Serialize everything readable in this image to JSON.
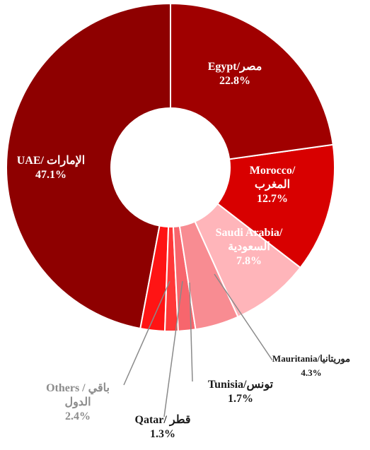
{
  "chart_data": {
    "type": "donut",
    "categories": [
      "Egypt/مصر",
      "Morocco/المغرب",
      "Saudi Arabia/ السعودية",
      "Mauritania/موريتانيا",
      "Tunisia/تونس",
      "Qatar/ قطر",
      "Others / باقي الدول",
      "UAE/ الإمارات"
    ],
    "values": [
      22.8,
      12.7,
      7.8,
      4.3,
      1.7,
      1.3,
      2.4,
      47.1
    ],
    "value_labels": [
      "22.8%",
      "12.7%",
      "7.8%",
      "4.3%",
      "1.7%",
      "1.3%",
      "2.4%",
      "47.1%"
    ],
    "colors": [
      "#a00000",
      "#d80000",
      "#ffb5ba",
      "#f88c92",
      "#f7666d",
      "#ff3838",
      "#ff1414",
      "#8e0000"
    ]
  }
}
